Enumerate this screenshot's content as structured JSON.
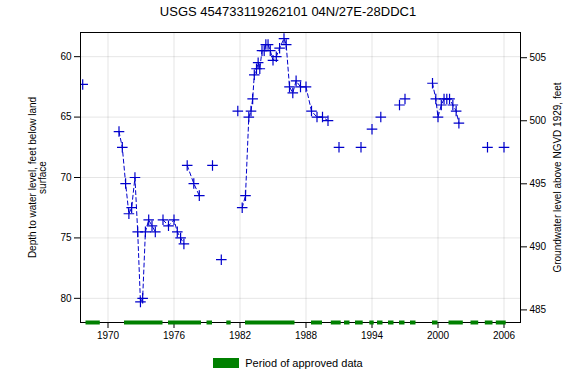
{
  "chart_data": {
    "type": "line",
    "title": "USGS 454733119262101 04N/27E-28DDC1",
    "ylabel": "Depth to water level, feet below land\nsurface",
    "y2label": "Groundwater level above NGVD 1929, feet",
    "xlim": [
      1967.5,
      2007.5
    ],
    "xticks": [
      1970,
      1976,
      1982,
      1988,
      1994,
      2000,
      2006
    ],
    "ylim": [
      82,
      58
    ],
    "yticks": [
      60,
      65,
      70,
      75,
      80
    ],
    "y2lim": [
      484,
      507
    ],
    "y2ticks": [
      485,
      490,
      495,
      500,
      505
    ],
    "grid": true,
    "legend": "bottom",
    "color": "#0000cc",
    "marker": "plus",
    "line_style": "dashed",
    "x": [
      1967.7,
      null,
      1971.0,
      1971.3,
      1971.6,
      1971.9,
      1972.15,
      1972.45,
      1972.7,
      1972.95,
      1973.15,
      1973.4,
      1973.7,
      1974.0,
      1974.3,
      null,
      1975.0,
      1975.5,
      1976.0,
      1976.3,
      1976.6,
      1976.9,
      null,
      1977.2,
      1977.8,
      1978.3,
      null,
      1979.5,
      null,
      1980.3,
      null,
      1981.8,
      null,
      1982.2,
      1982.5,
      1982.8,
      1983.0,
      1983.15,
      1983.3,
      1983.5,
      1983.65,
      1983.8,
      1984.0,
      1984.2,
      1984.35,
      1984.55,
      1984.75,
      1985.0,
      1985.3,
      1985.6,
      1986.0,
      1986.2,
      1986.5,
      1986.8,
      1987.1,
      1987.5,
      null,
      1988.0,
      1988.5,
      1989.0,
      1989.5,
      1990.0,
      null,
      1991.0,
      null,
      1993.0,
      null,
      1994.0,
      null,
      1994.8,
      null,
      1996.5,
      null,
      1997.0,
      null,
      1999.5,
      1999.8,
      2000.0,
      2000.3,
      2000.55,
      2000.8,
      2001.05,
      2001.35,
      2001.65,
      2001.9,
      null,
      2004.5,
      null,
      2006.0
    ],
    "values": [
      62.3,
      null,
      66.2,
      67.5,
      70.5,
      73.0,
      72.5,
      70.0,
      74.5,
      80.3,
      80.0,
      74.5,
      73.5,
      74.0,
      74.5,
      null,
      73.5,
      74.0,
      73.5,
      74.5,
      75.0,
      75.5,
      null,
      69.0,
      70.5,
      71.5,
      null,
      69.0,
      null,
      76.8,
      null,
      64.5,
      null,
      72.5,
      71.5,
      65.0,
      64.5,
      63.5,
      61.5,
      61.0,
      60.5,
      61.0,
      59.5,
      59.5,
      59.0,
      59.0,
      59.5,
      60.3,
      60.0,
      59.3,
      58.5,
      59.0,
      62.5,
      63.0,
      62.0,
      62.5,
      null,
      62.5,
      64.5,
      65.0,
      65.0,
      65.3,
      null,
      67.5,
      null,
      67.5,
      null,
      66.0,
      null,
      65.0,
      null,
      64.0,
      null,
      63.5,
      null,
      62.2,
      63.5,
      65.0,
      64.0,
      63.5,
      63.5,
      63.5,
      64.0,
      64.5,
      65.5,
      null,
      67.5,
      null,
      67.5
    ],
    "approved_periods": {
      "name": "Period of approved data",
      "color": "#008000",
      "ranges": [
        [
          1968.0,
          1969.3
        ],
        [
          1971.5,
          1975.0
        ],
        [
          1975.5,
          1978.5
        ],
        [
          1979.0,
          1979.5
        ],
        [
          1980.8,
          1981.2
        ],
        [
          1982.5,
          1987.0
        ],
        [
          1988.5,
          1989.5
        ],
        [
          1990.3,
          1991.2
        ],
        [
          1991.5,
          1992.0
        ],
        [
          1992.5,
          1993.2
        ],
        [
          1993.8,
          1994.2
        ],
        [
          1994.5,
          1995.0
        ],
        [
          1995.5,
          1996.0
        ],
        [
          1996.5,
          1997.0
        ],
        [
          1997.5,
          1998.0
        ],
        [
          1999.5,
          2000.0
        ],
        [
          2001.0,
          2002.3
        ],
        [
          2003.0,
          2003.7
        ],
        [
          2004.3,
          2005.0
        ],
        [
          2005.3,
          2006.2
        ]
      ]
    }
  }
}
